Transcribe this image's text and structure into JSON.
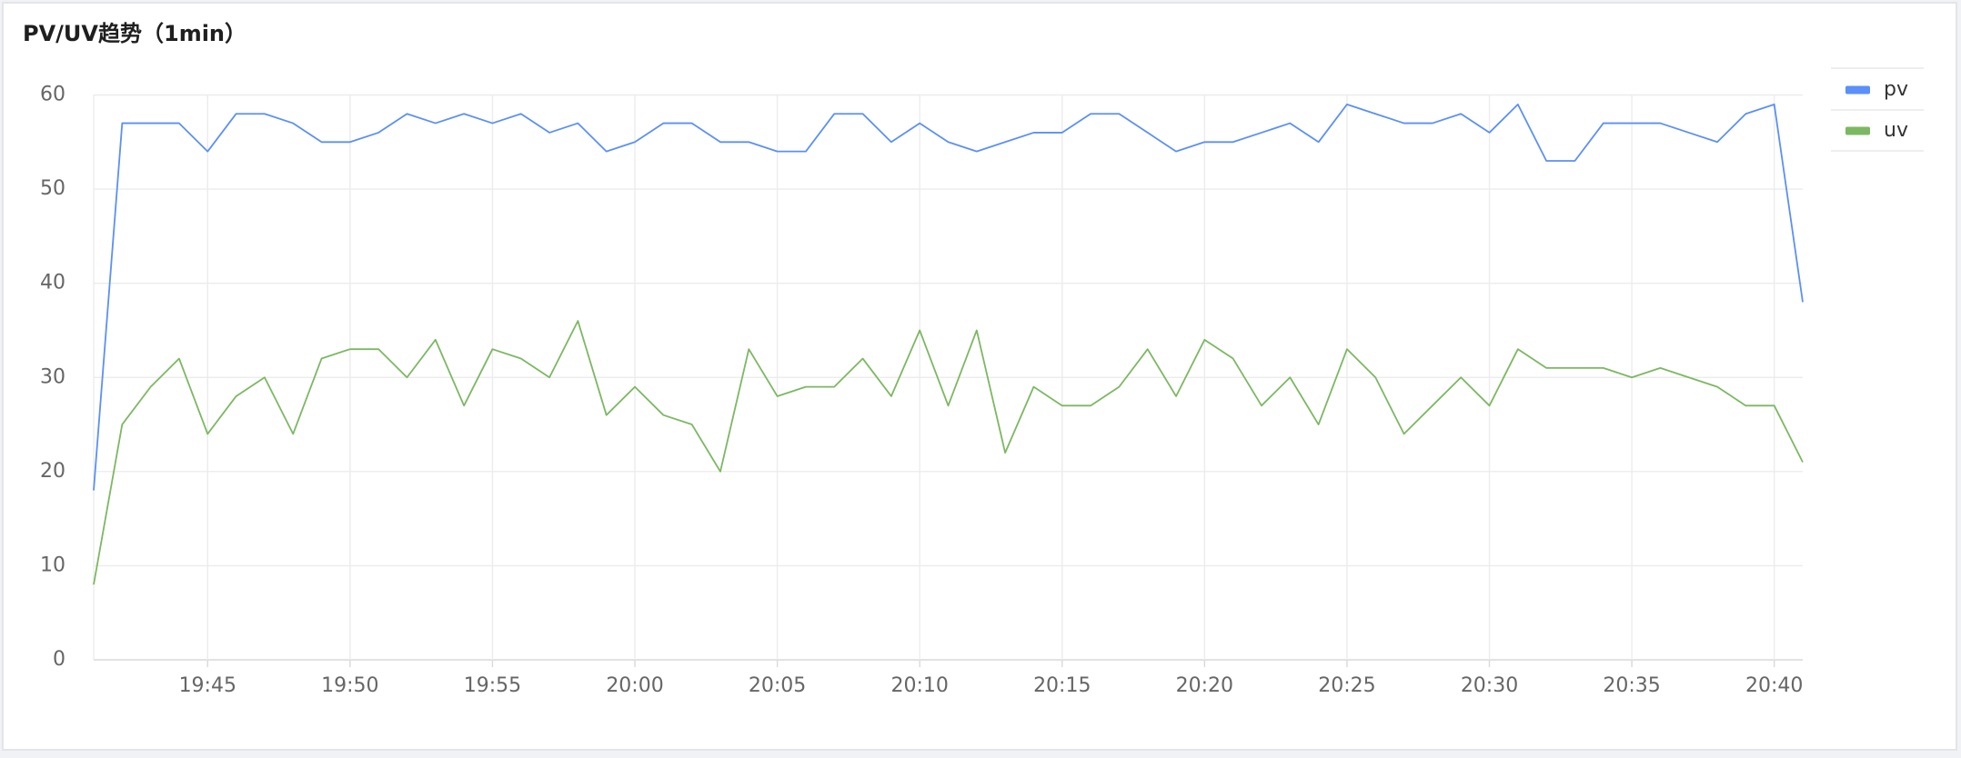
{
  "chart_data": {
    "type": "line",
    "title": "PV/UV趋势（1min）",
    "categories": [
      null,
      null,
      null,
      null,
      "19:45",
      null,
      null,
      null,
      null,
      "19:50",
      null,
      null,
      null,
      null,
      "19:55",
      null,
      null,
      null,
      null,
      "20:00",
      null,
      null,
      null,
      null,
      "20:05",
      null,
      null,
      null,
      null,
      "20:10",
      null,
      null,
      null,
      null,
      "20:15",
      null,
      null,
      null,
      null,
      "20:20",
      null,
      null,
      null,
      null,
      "20:25",
      null,
      null,
      null,
      null,
      "20:30",
      null,
      null,
      null,
      null,
      "20:35",
      null,
      null,
      null,
      null,
      "20:40",
      null
    ],
    "series": [
      {
        "name": "pv",
        "color": "#5b8ff9",
        "values": [
          18,
          57,
          57,
          57,
          54,
          58,
          58,
          57,
          55,
          55,
          56,
          58,
          57,
          58,
          57,
          58,
          56,
          57,
          54,
          55,
          57,
          57,
          55,
          55,
          54,
          54,
          58,
          58,
          55,
          57,
          55,
          54,
          55,
          56,
          56,
          58,
          58,
          56,
          54,
          55,
          55,
          56,
          57,
          55,
          59,
          58,
          57,
          57,
          58,
          56,
          59,
          53,
          53,
          57,
          57,
          57,
          56,
          55,
          58,
          59,
          38
        ]
      },
      {
        "name": "uv",
        "color": "#7cb862",
        "values": [
          8,
          25,
          29,
          32,
          24,
          28,
          30,
          24,
          32,
          33,
          33,
          30,
          34,
          27,
          33,
          32,
          30,
          36,
          26,
          29,
          26,
          25,
          20,
          33,
          28,
          29,
          29,
          32,
          28,
          35,
          27,
          35,
          22,
          29,
          27,
          27,
          29,
          33,
          28,
          34,
          32,
          27,
          30,
          25,
          33,
          30,
          24,
          27,
          30,
          27,
          33,
          31,
          31,
          31,
          30,
          31,
          30,
          29,
          27,
          27,
          21
        ]
      }
    ],
    "ylim": [
      0,
      60
    ],
    "yticks": [
      0,
      10,
      20,
      30,
      40,
      50,
      60
    ],
    "grid": true,
    "legend": "right"
  }
}
